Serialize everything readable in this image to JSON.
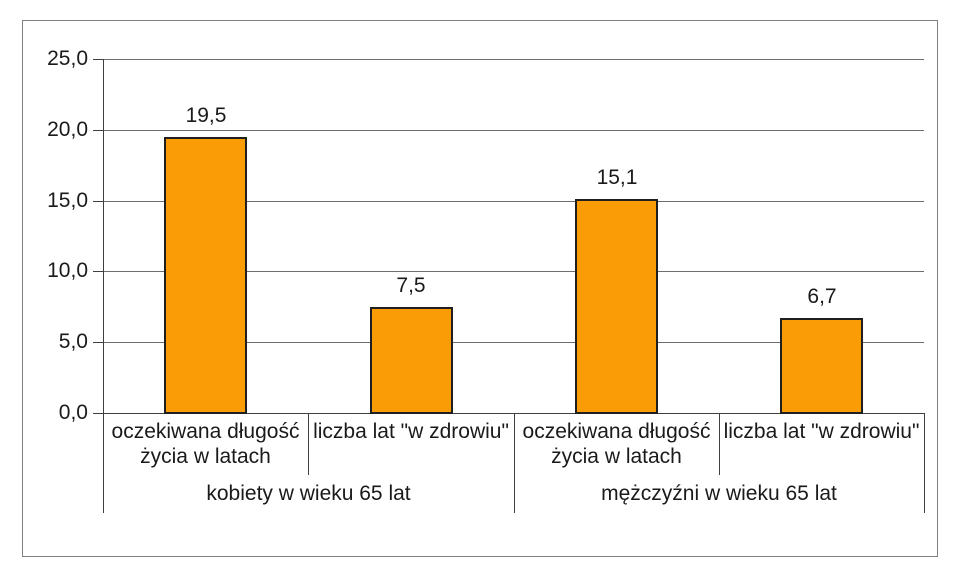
{
  "chart_data": {
    "type": "bar",
    "title": "",
    "legend": "none",
    "grid": true,
    "bar_color": "#FA9C05",
    "bar_border_color": "#1f1f1f",
    "y_axis": {
      "min": 0,
      "max": 25,
      "step": 5,
      "tick_labels": [
        "0,0",
        "5,0",
        "10,0",
        "15,0",
        "20,0",
        "25,0"
      ]
    },
    "groups": [
      {
        "label": "kobiety w wieku 65 lat",
        "bars": [
          {
            "category": "oczekiwana długość życia w latach",
            "category_lines": [
              "oczekiwana długość",
              "życia w latach"
            ],
            "value": 19.5,
            "value_label": "19,5"
          },
          {
            "category": "liczba lat \"w zdrowiu\"",
            "category_lines": [
              "liczba lat \"w zdrowiu\""
            ],
            "value": 7.5,
            "value_label": "7,5"
          }
        ]
      },
      {
        "label": "mężczyźni w wieku 65 lat",
        "bars": [
          {
            "category": "oczekiwana długość życia w latach",
            "category_lines": [
              "oczekiwana długość",
              "życia w latach"
            ],
            "value": 15.1,
            "value_label": "15,1"
          },
          {
            "category": "liczba lat \"w zdrowiu\"",
            "category_lines": [
              "liczba lat \"w zdrowiu\""
            ],
            "value": 6.7,
            "value_label": "6,7"
          }
        ]
      }
    ]
  }
}
